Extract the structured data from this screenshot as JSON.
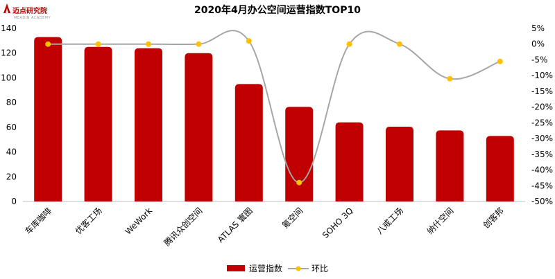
{
  "logo": {
    "name": "迈点研究院",
    "sub": "MEADIN ACADEMY"
  },
  "chart_data": {
    "type": "bar",
    "title": "2020年4月办公空间运营指数TOP10",
    "categories": [
      "车库咖啡",
      "优客工场",
      "WeWork",
      "腾讯众创空间",
      "ATLAS 寰图",
      "氪空间",
      "SOHO 3Q",
      "八戒工场",
      "纳什空间",
      "创客邦"
    ],
    "series": [
      {
        "name": "运营指数",
        "axis": "left",
        "kind": "bar",
        "color": "#c00000",
        "values": [
          133,
          125,
          124,
          120,
          95,
          76.5,
          64,
          60.5,
          57.5,
          53
        ]
      },
      {
        "name": "环比",
        "axis": "right",
        "kind": "line",
        "color": "#a6a6a6",
        "marker_color": "#ffc000",
        "values": [
          0,
          0,
          0,
          0,
          1,
          -44,
          0,
          0,
          -11,
          -5.5
        ]
      }
    ],
    "y_left": {
      "min": 0,
      "max": 140,
      "step": 20,
      "ticks": [
        "0",
        "20",
        "40",
        "60",
        "80",
        "100",
        "120",
        "140"
      ]
    },
    "y_right": {
      "min": -50,
      "max": 5,
      "step": 5,
      "ticks": [
        "-50%",
        "-45%",
        "-40%",
        "-35%",
        "-30%",
        "-25%",
        "-20%",
        "-15%",
        "-10%",
        "-5%",
        "0%",
        "5%"
      ]
    },
    "legend": {
      "position": "bottom",
      "items": [
        "运营指数",
        "环比"
      ]
    }
  }
}
